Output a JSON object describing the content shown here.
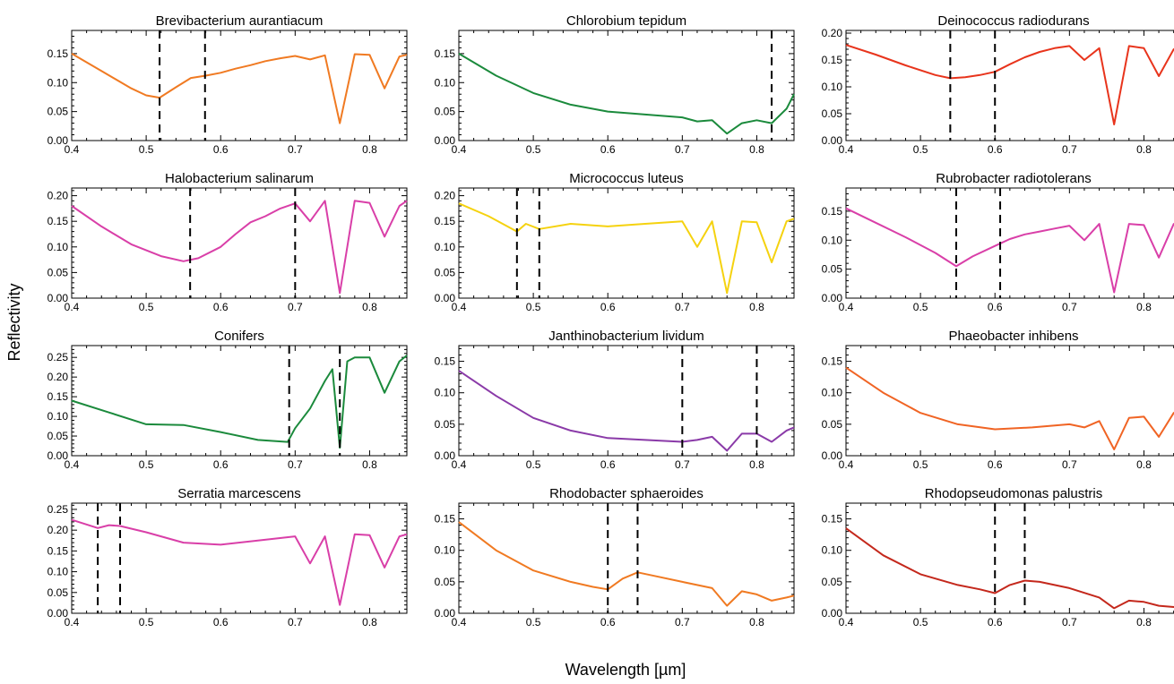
{
  "figure": {
    "ylabel": "Reflectivity",
    "xlabel": "Wavelength [µm]"
  },
  "chart_data": [
    {
      "type": "line",
      "title": "Brevibacterium aurantiacum",
      "color": "#f07a22",
      "xlim": [
        0.4,
        0.85
      ],
      "ylim": [
        0,
        0.19
      ],
      "xticks": [
        "0.4",
        "0.5",
        "0.6",
        "0.7",
        "0.8"
      ],
      "yticks": [
        "0.00",
        "0.05",
        "0.10",
        "0.15"
      ],
      "markers": [
        0.518,
        0.579
      ],
      "series": [
        {
          "x": [
            0.4,
            0.44,
            0.48,
            0.5,
            0.518,
            0.54,
            0.56,
            0.58,
            0.6,
            0.62,
            0.64,
            0.66,
            0.68,
            0.7,
            0.72,
            0.74,
            0.76,
            0.78,
            0.8,
            0.82,
            0.84,
            0.85
          ],
          "y": [
            0.15,
            0.12,
            0.09,
            0.078,
            0.074,
            0.092,
            0.108,
            0.112,
            0.117,
            0.124,
            0.13,
            0.137,
            0.142,
            0.146,
            0.14,
            0.147,
            0.03,
            0.149,
            0.148,
            0.09,
            0.145,
            0.148
          ]
        }
      ]
    },
    {
      "type": "line",
      "title": "Chlorobium tepidum",
      "color": "#1b8a3c",
      "xlim": [
        0.4,
        0.85
      ],
      "ylim": [
        0,
        0.19
      ],
      "xticks": [
        "0.4",
        "0.5",
        "0.6",
        "0.7",
        "0.8"
      ],
      "yticks": [
        "0.00",
        "0.05",
        "0.10",
        "0.15"
      ],
      "markers": [
        0.82
      ],
      "series": [
        {
          "x": [
            0.4,
            0.45,
            0.5,
            0.55,
            0.6,
            0.65,
            0.7,
            0.72,
            0.74,
            0.76,
            0.78,
            0.8,
            0.82,
            0.84,
            0.85
          ],
          "y": [
            0.15,
            0.112,
            0.082,
            0.062,
            0.05,
            0.045,
            0.04,
            0.033,
            0.035,
            0.012,
            0.03,
            0.035,
            0.03,
            0.055,
            0.08
          ]
        }
      ]
    },
    {
      "type": "line",
      "title": "Deinococcus radiodurans",
      "color": "#e8341c",
      "xlim": [
        0.4,
        0.85
      ],
      "ylim": [
        0,
        0.205
      ],
      "xticks": [
        "0.4",
        "0.5",
        "0.6",
        "0.7",
        "0.8"
      ],
      "yticks": [
        "0.00",
        "0.05",
        "0.10",
        "0.15",
        "0.20"
      ],
      "markers": [
        0.54,
        0.6
      ],
      "series": [
        {
          "x": [
            0.4,
            0.44,
            0.48,
            0.52,
            0.54,
            0.56,
            0.58,
            0.6,
            0.62,
            0.64,
            0.66,
            0.68,
            0.7,
            0.72,
            0.74,
            0.76,
            0.78,
            0.8,
            0.82,
            0.84,
            0.85
          ],
          "y": [
            0.178,
            0.16,
            0.14,
            0.122,
            0.116,
            0.118,
            0.122,
            0.128,
            0.142,
            0.155,
            0.165,
            0.172,
            0.176,
            0.15,
            0.172,
            0.03,
            0.176,
            0.172,
            0.12,
            0.17,
            0.172
          ]
        }
      ]
    },
    {
      "type": "line",
      "title": "Halobacterium salinarum",
      "color": "#d93fa8",
      "xlim": [
        0.4,
        0.85
      ],
      "ylim": [
        0,
        0.215
      ],
      "xticks": [
        "0.4",
        "0.5",
        "0.6",
        "0.7",
        "0.8"
      ],
      "yticks": [
        "0.00",
        "0.05",
        "0.10",
        "0.15",
        "0.20"
      ],
      "markers": [
        0.559,
        0.7
      ],
      "series": [
        {
          "x": [
            0.4,
            0.44,
            0.48,
            0.52,
            0.55,
            0.57,
            0.6,
            0.62,
            0.64,
            0.66,
            0.68,
            0.7,
            0.72,
            0.74,
            0.76,
            0.78,
            0.8,
            0.82,
            0.84,
            0.85
          ],
          "y": [
            0.18,
            0.14,
            0.105,
            0.082,
            0.072,
            0.078,
            0.1,
            0.125,
            0.148,
            0.16,
            0.175,
            0.185,
            0.15,
            0.19,
            0.01,
            0.19,
            0.186,
            0.12,
            0.18,
            0.19
          ]
        }
      ]
    },
    {
      "type": "line",
      "title": "Micrococcus luteus",
      "color": "#f5d20f",
      "xlim": [
        0.4,
        0.85
      ],
      "ylim": [
        0,
        0.215
      ],
      "xticks": [
        "0.4",
        "0.5",
        "0.6",
        "0.7",
        "0.8"
      ],
      "yticks": [
        "0.00",
        "0.05",
        "0.10",
        "0.15",
        "0.20"
      ],
      "markers": [
        0.478,
        0.508
      ],
      "series": [
        {
          "x": [
            0.4,
            0.44,
            0.478,
            0.49,
            0.508,
            0.55,
            0.6,
            0.65,
            0.7,
            0.72,
            0.74,
            0.76,
            0.78,
            0.8,
            0.82,
            0.84,
            0.85
          ],
          "y": [
            0.185,
            0.16,
            0.13,
            0.145,
            0.135,
            0.145,
            0.14,
            0.145,
            0.15,
            0.1,
            0.15,
            0.01,
            0.15,
            0.148,
            0.07,
            0.15,
            0.155
          ]
        }
      ]
    },
    {
      "type": "line",
      "title": "Rubrobacter radiotolerans",
      "color": "#d93fa8",
      "xlim": [
        0.4,
        0.85
      ],
      "ylim": [
        0,
        0.19
      ],
      "xticks": [
        "0.4",
        "0.5",
        "0.6",
        "0.7",
        "0.8"
      ],
      "yticks": [
        "0.00",
        "0.05",
        "0.10",
        "0.15"
      ],
      "markers": [
        0.548,
        0.607
      ],
      "series": [
        {
          "x": [
            0.4,
            0.44,
            0.48,
            0.52,
            0.548,
            0.57,
            0.6,
            0.62,
            0.64,
            0.66,
            0.68,
            0.7,
            0.72,
            0.74,
            0.76,
            0.78,
            0.8,
            0.82,
            0.84,
            0.85
          ],
          "y": [
            0.155,
            0.13,
            0.105,
            0.078,
            0.055,
            0.072,
            0.09,
            0.102,
            0.11,
            0.115,
            0.12,
            0.125,
            0.1,
            0.128,
            0.01,
            0.128,
            0.126,
            0.07,
            0.128,
            0.13
          ]
        }
      ]
    },
    {
      "type": "line",
      "title": "Conifers",
      "color": "#1b8a3c",
      "xlim": [
        0.4,
        0.85
      ],
      "ylim": [
        0,
        0.28
      ],
      "xticks": [
        "0.4",
        "0.5",
        "0.6",
        "0.7",
        "0.8"
      ],
      "yticks": [
        "0.00",
        "0.05",
        "0.10",
        "0.15",
        "0.20",
        "0.25"
      ],
      "markers": [
        0.692,
        0.76
      ],
      "series": [
        {
          "x": [
            0.4,
            0.45,
            0.5,
            0.55,
            0.6,
            0.65,
            0.69,
            0.7,
            0.72,
            0.74,
            0.75,
            0.76,
            0.77,
            0.78,
            0.8,
            0.82,
            0.84,
            0.85
          ],
          "y": [
            0.14,
            0.11,
            0.08,
            0.078,
            0.06,
            0.04,
            0.035,
            0.07,
            0.12,
            0.19,
            0.22,
            0.02,
            0.24,
            0.25,
            0.25,
            0.16,
            0.24,
            0.255
          ]
        }
      ]
    },
    {
      "type": "line",
      "title": "Janthinobacterium lividum",
      "color": "#8a3aa8",
      "xlim": [
        0.4,
        0.85
      ],
      "ylim": [
        0,
        0.175
      ],
      "xticks": [
        "0.4",
        "0.5",
        "0.6",
        "0.7",
        "0.8"
      ],
      "yticks": [
        "0.00",
        "0.05",
        "0.10",
        "0.15"
      ],
      "markers": [
        0.7,
        0.8
      ],
      "series": [
        {
          "x": [
            0.4,
            0.45,
            0.5,
            0.55,
            0.6,
            0.65,
            0.7,
            0.72,
            0.74,
            0.76,
            0.78,
            0.8,
            0.82,
            0.84,
            0.85
          ],
          "y": [
            0.135,
            0.095,
            0.06,
            0.04,
            0.028,
            0.025,
            0.022,
            0.025,
            0.03,
            0.008,
            0.035,
            0.035,
            0.022,
            0.04,
            0.045
          ]
        }
      ]
    },
    {
      "type": "line",
      "title": "Phaeobacter inhibens",
      "color": "#f06424",
      "xlim": [
        0.4,
        0.85
      ],
      "ylim": [
        0,
        0.175
      ],
      "xticks": [
        "0.4",
        "0.5",
        "0.6",
        "0.7",
        "0.8"
      ],
      "yticks": [
        "0.00",
        "0.05",
        "0.10",
        "0.15"
      ],
      "markers": [],
      "series": [
        {
          "x": [
            0.4,
            0.45,
            0.5,
            0.55,
            0.6,
            0.65,
            0.7,
            0.72,
            0.74,
            0.76,
            0.78,
            0.8,
            0.82,
            0.84,
            0.85
          ],
          "y": [
            0.14,
            0.1,
            0.068,
            0.05,
            0.042,
            0.045,
            0.05,
            0.045,
            0.055,
            0.01,
            0.06,
            0.062,
            0.03,
            0.068,
            0.075
          ]
        }
      ]
    },
    {
      "type": "line",
      "title": "Serratia marcescens",
      "color": "#d93fa8",
      "xlim": [
        0.4,
        0.85
      ],
      "ylim": [
        0,
        0.265
      ],
      "xticks": [
        "0.4",
        "0.5",
        "0.6",
        "0.7",
        "0.8"
      ],
      "yticks": [
        "0.00",
        "0.05",
        "0.10",
        "0.15",
        "0.20",
        "0.25"
      ],
      "markers": [
        0.435,
        0.465
      ],
      "series": [
        {
          "x": [
            0.4,
            0.435,
            0.45,
            0.465,
            0.5,
            0.55,
            0.6,
            0.65,
            0.7,
            0.72,
            0.74,
            0.76,
            0.78,
            0.8,
            0.82,
            0.84,
            0.85
          ],
          "y": [
            0.225,
            0.205,
            0.212,
            0.21,
            0.195,
            0.17,
            0.165,
            0.175,
            0.185,
            0.12,
            0.185,
            0.02,
            0.19,
            0.188,
            0.11,
            0.185,
            0.19
          ]
        }
      ]
    },
    {
      "type": "line",
      "title": "Rhodobacter sphaeroides",
      "color": "#f07a22",
      "xlim": [
        0.4,
        0.85
      ],
      "ylim": [
        0,
        0.175
      ],
      "xticks": [
        "0.4",
        "0.5",
        "0.6",
        "0.7",
        "0.8"
      ],
      "yticks": [
        "0.00",
        "0.05",
        "0.10",
        "0.15"
      ],
      "markers": [
        0.6,
        0.64
      ],
      "series": [
        {
          "x": [
            0.4,
            0.45,
            0.5,
            0.55,
            0.58,
            0.6,
            0.62,
            0.64,
            0.66,
            0.7,
            0.74,
            0.76,
            0.78,
            0.8,
            0.82,
            0.84,
            0.85
          ],
          "y": [
            0.145,
            0.1,
            0.068,
            0.05,
            0.042,
            0.038,
            0.055,
            0.065,
            0.06,
            0.05,
            0.04,
            0.012,
            0.035,
            0.03,
            0.02,
            0.025,
            0.028
          ]
        }
      ]
    },
    {
      "type": "line",
      "title": "Rhodopseudomonas palustris",
      "color": "#c4281c",
      "xlim": [
        0.4,
        0.85
      ],
      "ylim": [
        0,
        0.175
      ],
      "xticks": [
        "0.4",
        "0.5",
        "0.6",
        "0.7",
        "0.8"
      ],
      "yticks": [
        "0.00",
        "0.05",
        "0.10",
        "0.15"
      ],
      "markers": [
        0.6,
        0.64
      ],
      "series": [
        {
          "x": [
            0.4,
            0.45,
            0.5,
            0.55,
            0.58,
            0.6,
            0.62,
            0.64,
            0.66,
            0.7,
            0.74,
            0.76,
            0.78,
            0.8,
            0.82,
            0.84,
            0.85
          ],
          "y": [
            0.135,
            0.092,
            0.062,
            0.045,
            0.038,
            0.032,
            0.045,
            0.052,
            0.05,
            0.04,
            0.025,
            0.008,
            0.02,
            0.018,
            0.012,
            0.01,
            0.012
          ]
        }
      ]
    }
  ]
}
